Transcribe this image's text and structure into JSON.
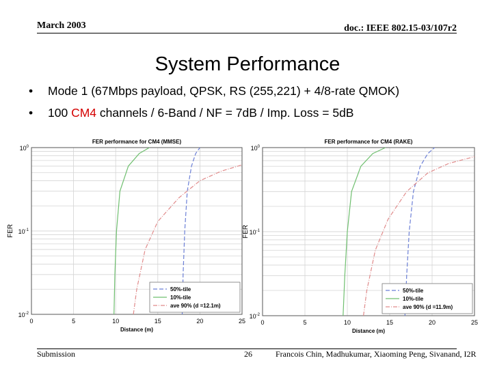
{
  "header": {
    "date": "March 2003",
    "doc": "doc.: IEEE 802.15-03/107r2"
  },
  "title": "System Performance",
  "bullets": [
    {
      "marker": "•",
      "text": "Mode 1 (67Mbps payload, QPSK, RS (255,221) + 4/8-rate QMOK)"
    },
    {
      "marker": "•",
      "pre": "100 ",
      "highlight": "CM4",
      "post": " channels / 6-Band / NF = 7dB / Imp. Loss = 5dB"
    }
  ],
  "colors": {
    "green": "#6fbf6f",
    "blue": "#6b7fd6",
    "red": "#e08a8a",
    "highlight": "#d40000"
  },
  "chart_data": [
    {
      "type": "line",
      "title": "FER performance for CM4 (MMSE)",
      "xlabel": "Distance (m)",
      "ylabel": "FER",
      "xlim": [
        0,
        25
      ],
      "ylim": [
        0.01,
        1
      ],
      "yscale": "log",
      "xticks": [
        "0",
        "5",
        "10",
        "15",
        "20",
        "25"
      ],
      "yticks": [
        {
          "base": "10",
          "exp": "0"
        },
        {
          "base": "10",
          "exp": "-1"
        },
        {
          "base": "10",
          "exp": "-2"
        }
      ],
      "grid": true,
      "legend_position": "bottom-right",
      "series": [
        {
          "name": "50%-tile",
          "style": "dashed",
          "color": "blue",
          "x": [
            17.9,
            18.0,
            18.2,
            18.5,
            19.0,
            19.5,
            20.0
          ],
          "y": [
            0.01,
            0.03,
            0.1,
            0.3,
            0.6,
            0.85,
            1.0
          ]
        },
        {
          "name": "10%-tile",
          "style": "solid",
          "color": "green",
          "x": [
            9.8,
            9.9,
            10.1,
            10.5,
            11.5,
            12.8,
            14.0
          ],
          "y": [
            0.01,
            0.03,
            0.1,
            0.3,
            0.6,
            0.85,
            1.0
          ]
        },
        {
          "name": "ave 90% (d =12.1m)",
          "style": "dashdot",
          "color": "red",
          "x": [
            12.1,
            12.5,
            13.5,
            15.0,
            17.5,
            20.0,
            22.5,
            25.0
          ],
          "y": [
            0.01,
            0.02,
            0.06,
            0.13,
            0.25,
            0.4,
            0.52,
            0.62
          ]
        }
      ]
    },
    {
      "type": "line",
      "title": "FER performance for CM4 (RAKE)",
      "xlabel": "Distance (m)",
      "ylabel": "FER",
      "xlim": [
        0,
        25
      ],
      "ylim": [
        0.01,
        1
      ],
      "yscale": "log",
      "xticks": [
        "0",
        "5",
        "10",
        "15",
        "20",
        "25"
      ],
      "yticks": [
        {
          "base": "10",
          "exp": "0"
        },
        {
          "base": "10",
          "exp": "-1"
        },
        {
          "base": "10",
          "exp": "-2"
        }
      ],
      "grid": true,
      "legend_position": "bottom-right",
      "series": [
        {
          "name": "50%-tile",
          "style": "dashed",
          "color": "blue",
          "x": [
            16.8,
            17.0,
            17.3,
            17.8,
            18.6,
            19.5,
            20.3
          ],
          "y": [
            0.01,
            0.03,
            0.1,
            0.3,
            0.6,
            0.85,
            1.0
          ]
        },
        {
          "name": "10%-tile",
          "style": "solid",
          "color": "green",
          "x": [
            9.5,
            9.7,
            10.0,
            10.5,
            11.6,
            13.0,
            14.5
          ],
          "y": [
            0.01,
            0.03,
            0.1,
            0.3,
            0.6,
            0.85,
            1.0
          ]
        },
        {
          "name": "ave 90% (d =11.9m)",
          "style": "dashdot",
          "color": "red",
          "x": [
            11.9,
            12.3,
            13.3,
            14.8,
            17.0,
            19.5,
            22.0,
            25.0
          ],
          "y": [
            0.01,
            0.02,
            0.06,
            0.14,
            0.3,
            0.5,
            0.65,
            0.78
          ]
        }
      ]
    }
  ],
  "footer": {
    "left": "Submission",
    "page": "26",
    "authors": "Francois Chin, Madhukumar, Xiaoming Peng, Sivanand, I2R"
  }
}
